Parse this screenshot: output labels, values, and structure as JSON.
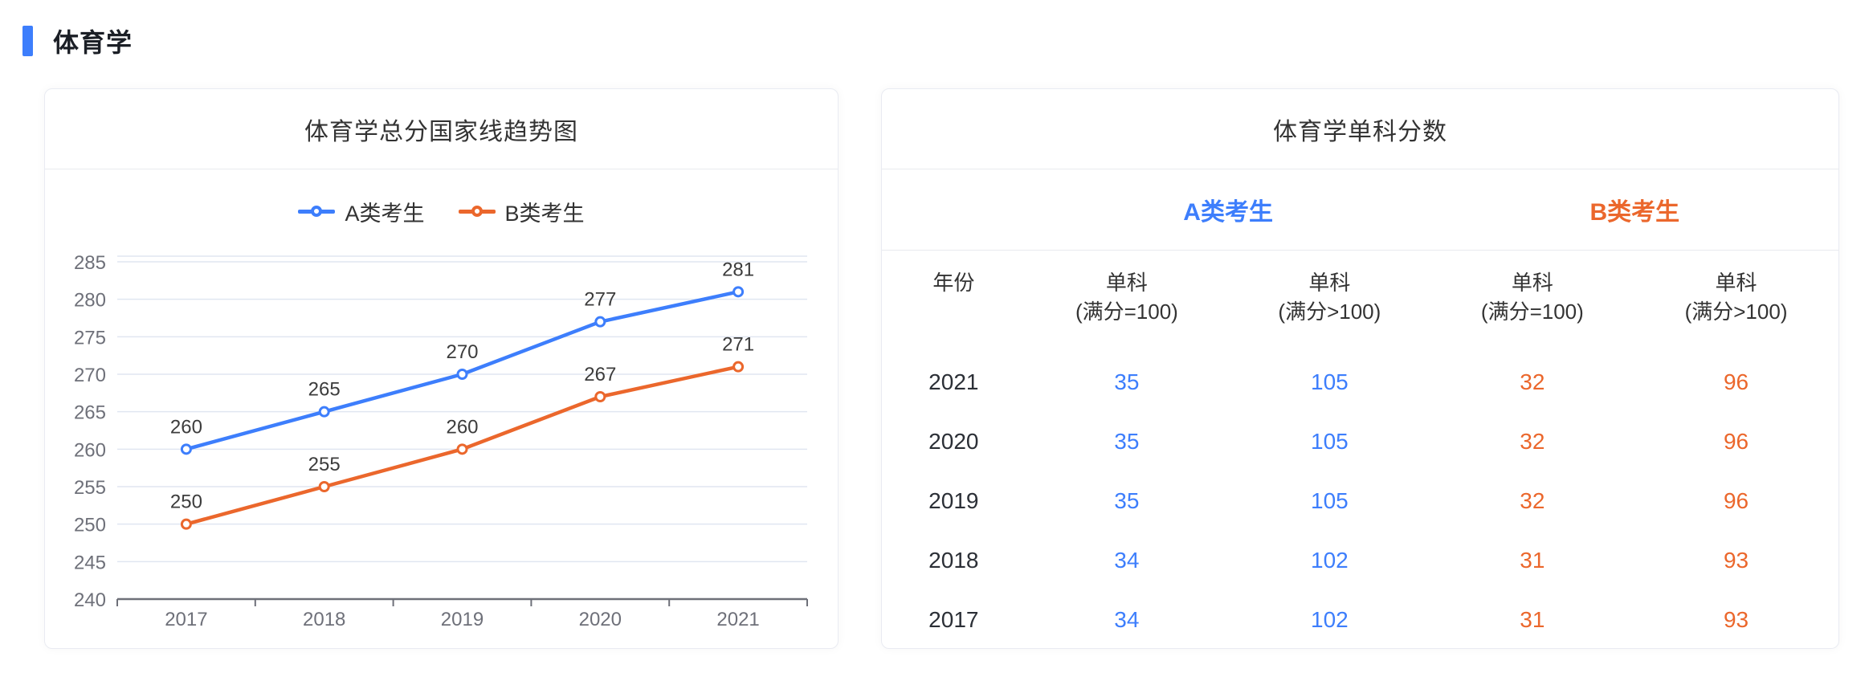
{
  "page": {
    "section_title": "体育学"
  },
  "colors": {
    "accent_blue": "#3D7EFC",
    "accent_orange": "#EB672C",
    "axis_gray": "#6E7079",
    "grid_line": "#E0E6F1",
    "data_label": "#3c3c3c"
  },
  "chart_card": {
    "title": "体育学总分国家线趋势图"
  },
  "chart_data": {
    "type": "line",
    "title": "体育学总分国家线趋势图",
    "x": [
      "2017",
      "2018",
      "2019",
      "2020",
      "2021"
    ],
    "series": [
      {
        "name": "A类考生",
        "color": "#3D7EFC",
        "values": [
          260,
          265,
          270,
          277,
          281
        ]
      },
      {
        "name": "B类考生",
        "color": "#EB672C",
        "values": [
          250,
          255,
          260,
          267,
          271
        ]
      }
    ],
    "ylim": [
      240,
      285
    ],
    "ytick_interval": 5,
    "grid": true,
    "legend_position": "top",
    "data_labels": true
  },
  "table_card": {
    "title": "体育学单科分数",
    "groups": [
      {
        "label": "A类考生",
        "color": "#3D7EFC"
      },
      {
        "label": "B类考生",
        "color": "#EB672C"
      }
    ],
    "columns": [
      {
        "line1": "年份",
        "line2": ""
      },
      {
        "line1": "单科",
        "line2": "(满分=100)"
      },
      {
        "line1": "单科",
        "line2": "(满分>100)"
      },
      {
        "line1": "单科",
        "line2": "(满分=100)"
      },
      {
        "line1": "单科",
        "line2": "(满分>100)"
      }
    ],
    "rows": [
      {
        "year": "2021",
        "values": [
          "35",
          "105",
          "32",
          "96"
        ]
      },
      {
        "year": "2020",
        "values": [
          "35",
          "105",
          "32",
          "96"
        ]
      },
      {
        "year": "2019",
        "values": [
          "35",
          "105",
          "32",
          "96"
        ]
      },
      {
        "year": "2018",
        "values": [
          "34",
          "102",
          "31",
          "93"
        ]
      },
      {
        "year": "2017",
        "values": [
          "34",
          "102",
          "31",
          "93"
        ]
      }
    ]
  }
}
